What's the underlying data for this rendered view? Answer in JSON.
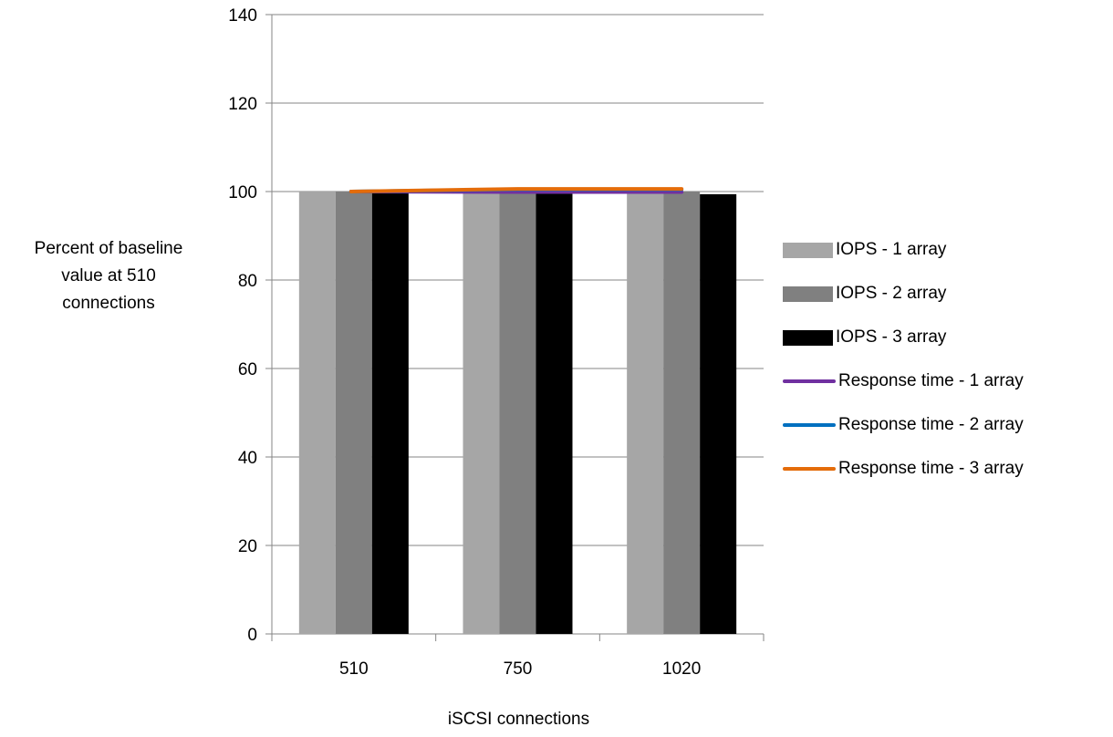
{
  "chart_data": {
    "type": "bar",
    "title": "",
    "xlabel": "iSCSI connections",
    "ylabel": "Percent of baseline\nvalue at 510\nconnections",
    "categories": [
      "510",
      "750",
      "1020"
    ],
    "ylim": [
      0,
      140
    ],
    "yticks": [
      0,
      20,
      40,
      60,
      80,
      100,
      120,
      140
    ],
    "grid": true,
    "legend_position": "right",
    "series": [
      {
        "name": "IOPS - 1 array",
        "kind": "bar",
        "color": "#a6a6a6",
        "values": [
          100,
          99.6,
          99.5
        ]
      },
      {
        "name": "IOPS - 2 array",
        "kind": "bar",
        "color": "#808080",
        "values": [
          100,
          99.8,
          100
        ]
      },
      {
        "name": "IOPS - 3 array",
        "kind": "bar",
        "color": "#000000",
        "values": [
          100,
          99.5,
          99.4
        ]
      },
      {
        "name": "Response time - 1 array",
        "kind": "line",
        "color": "#7030a0",
        "values": [
          100,
          99.9,
          99.9
        ]
      },
      {
        "name": "Response time - 2 array",
        "kind": "line",
        "color": "#0070c0",
        "values": [
          100,
          100.5,
          100.5
        ]
      },
      {
        "name": "Response time - 3 array",
        "kind": "line",
        "color": "#e46c0a",
        "values": [
          100,
          100.6,
          100.6
        ]
      }
    ]
  }
}
